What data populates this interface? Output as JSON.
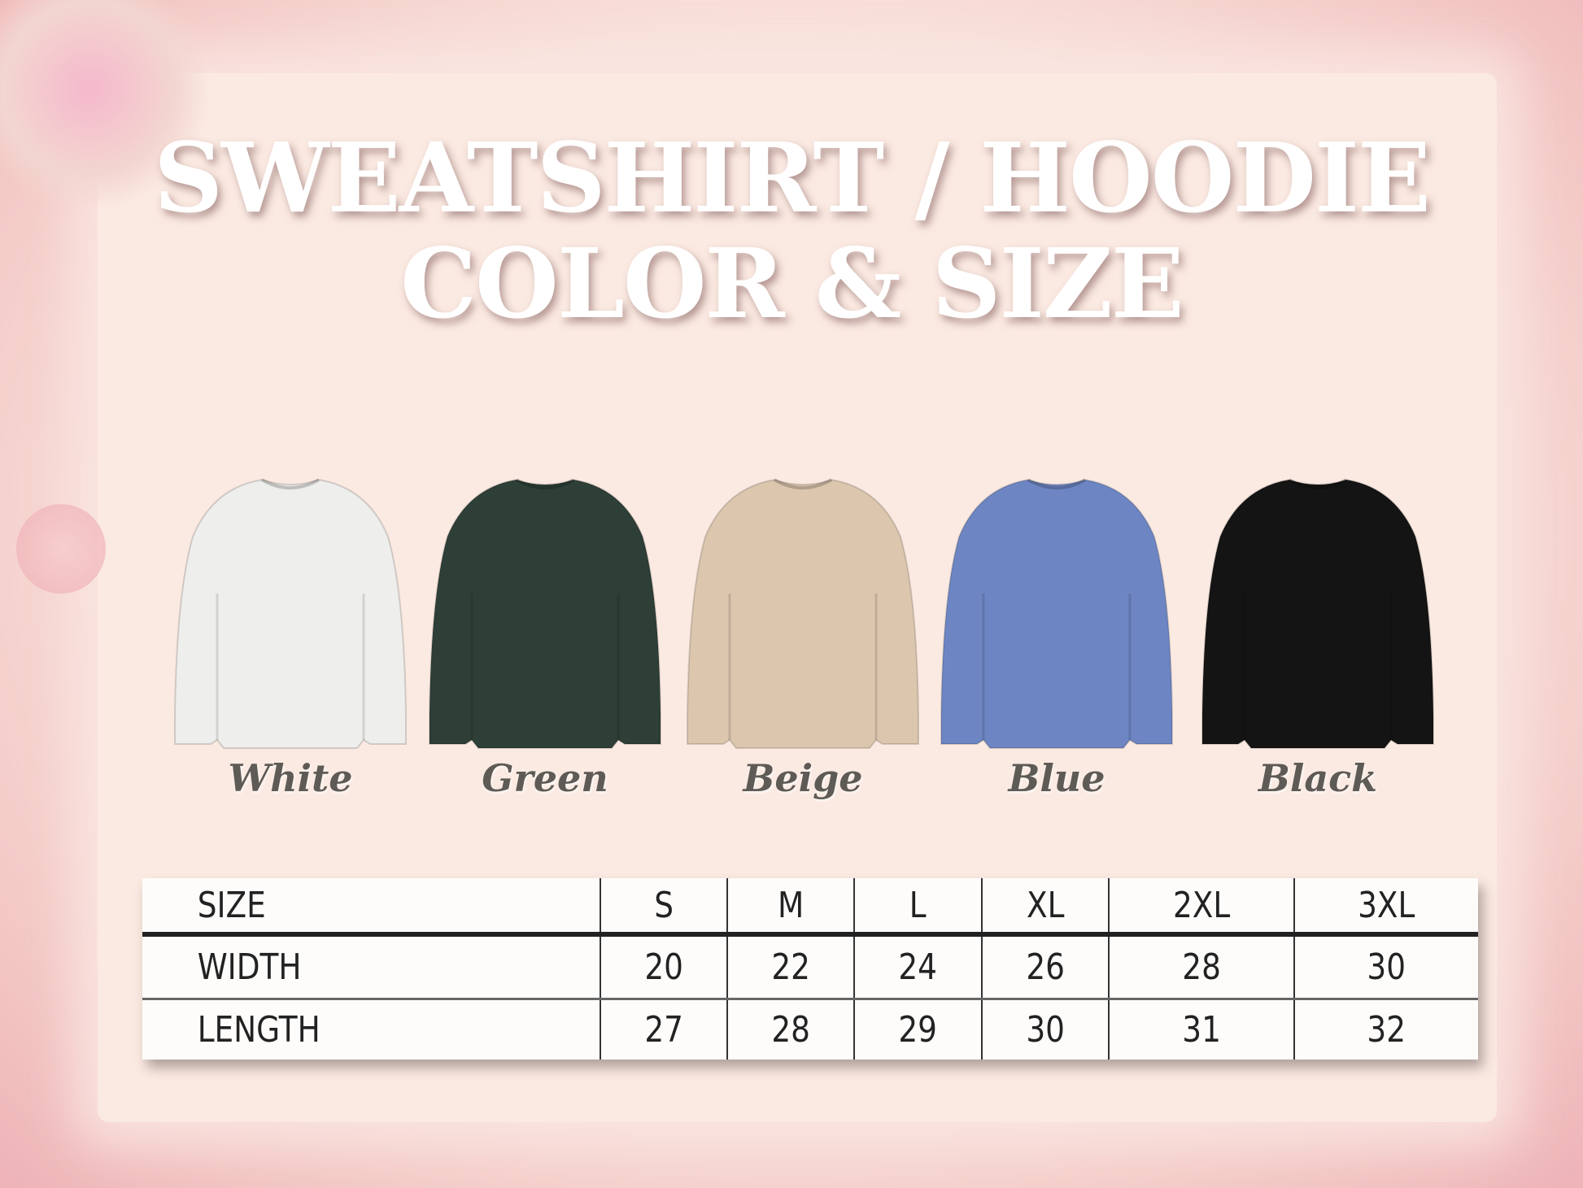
{
  "title": {
    "line1": "SWEATSHIRT / HOODIE",
    "line2": "COLOR & SIZE"
  },
  "colors": [
    {
      "name": "White",
      "hex": "#eeeeec"
    },
    {
      "name": "Green",
      "hex": "#2e3f37"
    },
    {
      "name": "Beige",
      "hex": "#dcc7ae"
    },
    {
      "name": "Blue",
      "hex": "#6d86c3"
    },
    {
      "name": "Black",
      "hex": "#141414"
    }
  ],
  "size_table": {
    "headers": [
      "SIZE",
      "S",
      "M",
      "L",
      "XL",
      "2XL",
      "3XL"
    ],
    "rows": [
      [
        "WIDTH",
        "20",
        "22",
        "24",
        "26",
        "28",
        "30"
      ],
      [
        "LENGTH",
        "27",
        "28",
        "29",
        "30",
        "31",
        "32"
      ]
    ]
  }
}
